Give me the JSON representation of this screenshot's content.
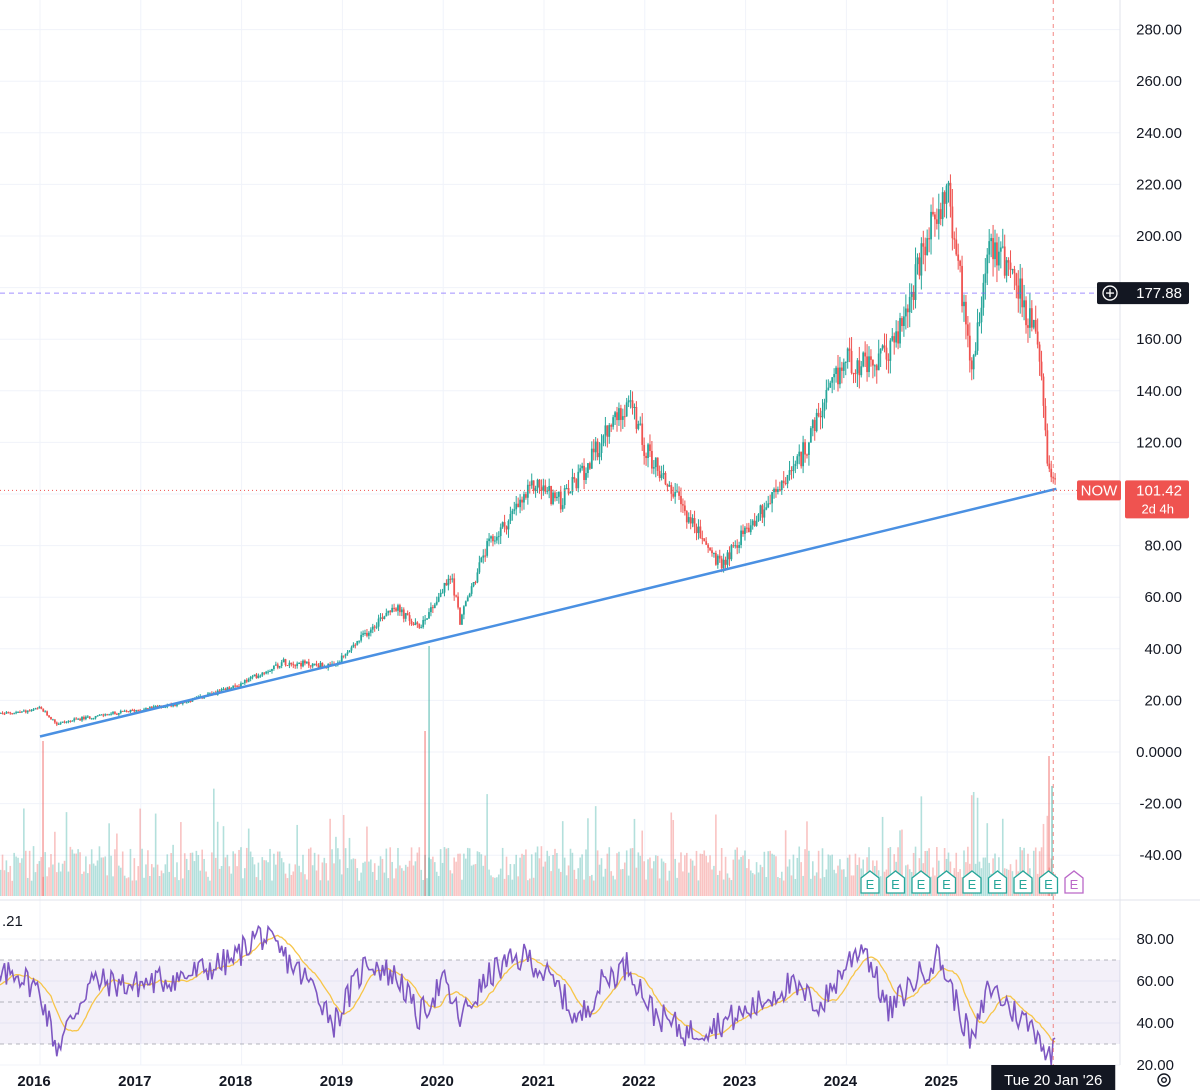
{
  "colors": {
    "up": "#26a69a",
    "down": "#ef5350",
    "trendline": "#4a90e2",
    "rsi": "#7e57c2",
    "rsi_ma": "#f7c548",
    "grid": "#f0f3fa",
    "text": "#131722",
    "price_box": "#ef5350",
    "crosshair_box": "#131722",
    "earnings": "#26a69a",
    "earnings_next": "#ba68c8"
  },
  "chart_data": [
    {
      "type": "candlestick",
      "ticker": "NOW",
      "interval": "weekly",
      "x_range": [
        "2015-06",
        "2026-02"
      ],
      "x_ticks": [
        "2016",
        "2017",
        "2018",
        "2019",
        "2020",
        "2021",
        "2022",
        "2023",
        "2024",
        "2025"
      ],
      "y_ticks": [
        "280.00",
        "260.00",
        "240.00",
        "220.00",
        "200.00",
        "180.00",
        "160.00",
        "140.00",
        "120.00",
        "100.00",
        "80.00",
        "60.00",
        "40.00",
        "20.00",
        "0.0000",
        "-20.00",
        "-40.00"
      ],
      "ylim": [
        -50,
        290
      ],
      "grid": true,
      "price_path": [
        [
          "2015-06",
          14
        ],
        [
          "2015-12",
          16
        ],
        [
          "2016-01",
          17
        ],
        [
          "2016-03",
          11
        ],
        [
          "2016-06",
          13
        ],
        [
          "2016-12",
          16
        ],
        [
          "2017-06",
          19
        ],
        [
          "2017-12",
          25
        ],
        [
          "2018-06",
          35
        ],
        [
          "2018-12",
          33
        ],
        [
          "2019-07",
          57
        ],
        [
          "2019-10",
          48
        ],
        [
          "2020-02",
          68
        ],
        [
          "2020-03",
          51
        ],
        [
          "2020-06",
          78
        ],
        [
          "2020-12",
          104
        ],
        [
          "2021-03",
          97
        ],
        [
          "2021-06",
          110
        ],
        [
          "2021-11",
          137
        ],
        [
          "2022-01",
          118
        ],
        [
          "2022-06",
          92
        ],
        [
          "2022-10",
          72
        ],
        [
          "2023-01",
          86
        ],
        [
          "2023-07",
          110
        ],
        [
          "2024-01",
          153
        ],
        [
          "2024-04",
          148
        ],
        [
          "2024-07",
          160
        ],
        [
          "2024-12",
          212
        ],
        [
          "2025-01",
          218
        ],
        [
          "2025-04",
          150
        ],
        [
          "2025-06",
          200
        ],
        [
          "2025-09",
          185
        ],
        [
          "2025-12",
          155
        ],
        [
          "2026-01",
          108
        ],
        [
          "2026-02",
          101.42
        ]
      ],
      "trendline": {
        "from": [
          "2016-01",
          6
        ],
        "to": [
          "2026-02",
          102
        ]
      },
      "horizontal_line": {
        "value": 177.88,
        "label": "177.88",
        "icon": "plus-circle-icon"
      },
      "last_price": {
        "value": 101.42,
        "label": "101.42",
        "ticker_label": "NOW",
        "countdown": "2d 4h"
      },
      "crosshair": {
        "date": "2026-01-20",
        "label": "Tue 20 Jan '26"
      },
      "earnings_markers": {
        "label": "E",
        "count_past": 8,
        "count_upcoming": 1
      },
      "volume": true
    },
    {
      "type": "line",
      "indicator": "RSI",
      "value_label": ".21",
      "y_ticks": [
        "80.00",
        "60.00",
        "40.00",
        "20.00"
      ],
      "ylim": [
        15,
        90
      ],
      "band": [
        30,
        70
      ],
      "middle": 50,
      "rsi_path": [
        [
          "2015-06",
          55
        ],
        [
          "2015-10",
          65
        ],
        [
          "2016-01",
          55
        ],
        [
          "2016-03",
          28
        ],
        [
          "2016-07",
          60
        ],
        [
          "2016-12",
          58
        ],
        [
          "2017-06",
          62
        ],
        [
          "2017-12",
          70
        ],
        [
          "2018-03",
          83
        ],
        [
          "2018-06",
          72
        ],
        [
          "2018-10",
          55
        ],
        [
          "2018-12",
          40
        ],
        [
          "2019-04",
          70
        ],
        [
          "2019-08",
          60
        ],
        [
          "2019-10",
          42
        ],
        [
          "2020-01",
          60
        ],
        [
          "2020-03",
          42
        ],
        [
          "2020-07",
          65
        ],
        [
          "2020-11",
          72
        ],
        [
          "2021-03",
          55
        ],
        [
          "2021-05",
          40
        ],
        [
          "2021-08",
          60
        ],
        [
          "2021-11",
          68
        ],
        [
          "2022-02",
          45
        ],
        [
          "2022-06",
          35
        ],
        [
          "2022-10",
          40
        ],
        [
          "2023-01",
          45
        ],
        [
          "2023-06",
          58
        ],
        [
          "2023-10",
          48
        ],
        [
          "2024-01",
          68
        ],
        [
          "2024-03",
          78
        ],
        [
          "2024-06",
          45
        ],
        [
          "2024-09",
          60
        ],
        [
          "2024-12",
          72
        ],
        [
          "2025-03",
          40
        ],
        [
          "2025-04",
          30
        ],
        [
          "2025-06",
          58
        ],
        [
          "2025-09",
          45
        ],
        [
          "2025-12",
          35
        ],
        [
          "2026-01",
          22
        ],
        [
          "2026-02",
          33
        ]
      ]
    }
  ]
}
